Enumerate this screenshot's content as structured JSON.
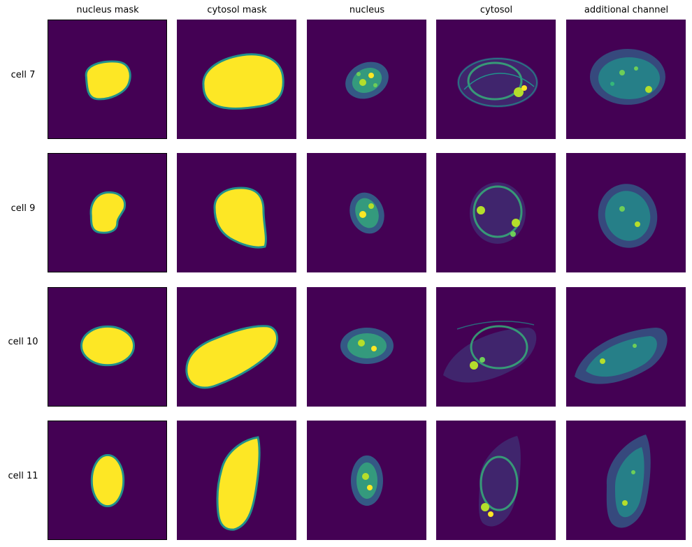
{
  "columns": [
    "nucleus mask",
    "cytosol mask",
    "nucleus",
    "cytosol",
    "additional channel"
  ],
  "rows": [
    {
      "label": "cell 7"
    },
    {
      "label": "cell 9"
    },
    {
      "label": "cell 10"
    },
    {
      "label": "cell 11"
    }
  ],
  "colormap": {
    "background": "#440154",
    "mask_fill": "#fde725",
    "mask_edge": "#21918c",
    "signal_low": "#31688e",
    "signal_mid": "#35b779",
    "signal_high": "#fde725"
  }
}
